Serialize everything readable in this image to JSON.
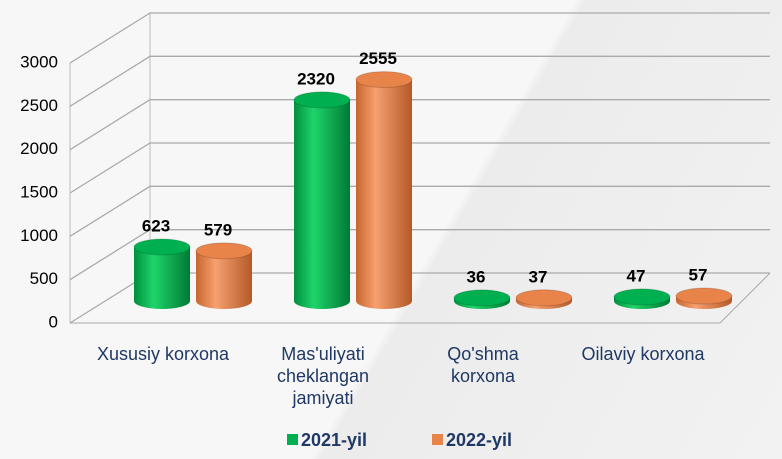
{
  "chart_data": {
    "type": "bar3d",
    "categories": [
      "Xususiy korxona",
      "Mas'uliyati cheklangan jamiyati",
      "Qo'shma korxona",
      "Oilaviy korxona"
    ],
    "series": [
      {
        "name": "2021-yil",
        "color": "#00b050",
        "values": [
          623,
          2320,
          36,
          47
        ]
      },
      {
        "name": "2022-yil",
        "color": "#e8834a",
        "values": [
          579,
          2555,
          37,
          57
        ]
      }
    ],
    "ylim": [
      0,
      3000
    ],
    "yticks": [
      0,
      500,
      1000,
      1500,
      2000,
      2500,
      3000
    ],
    "grid": true,
    "legend": "bottom"
  }
}
